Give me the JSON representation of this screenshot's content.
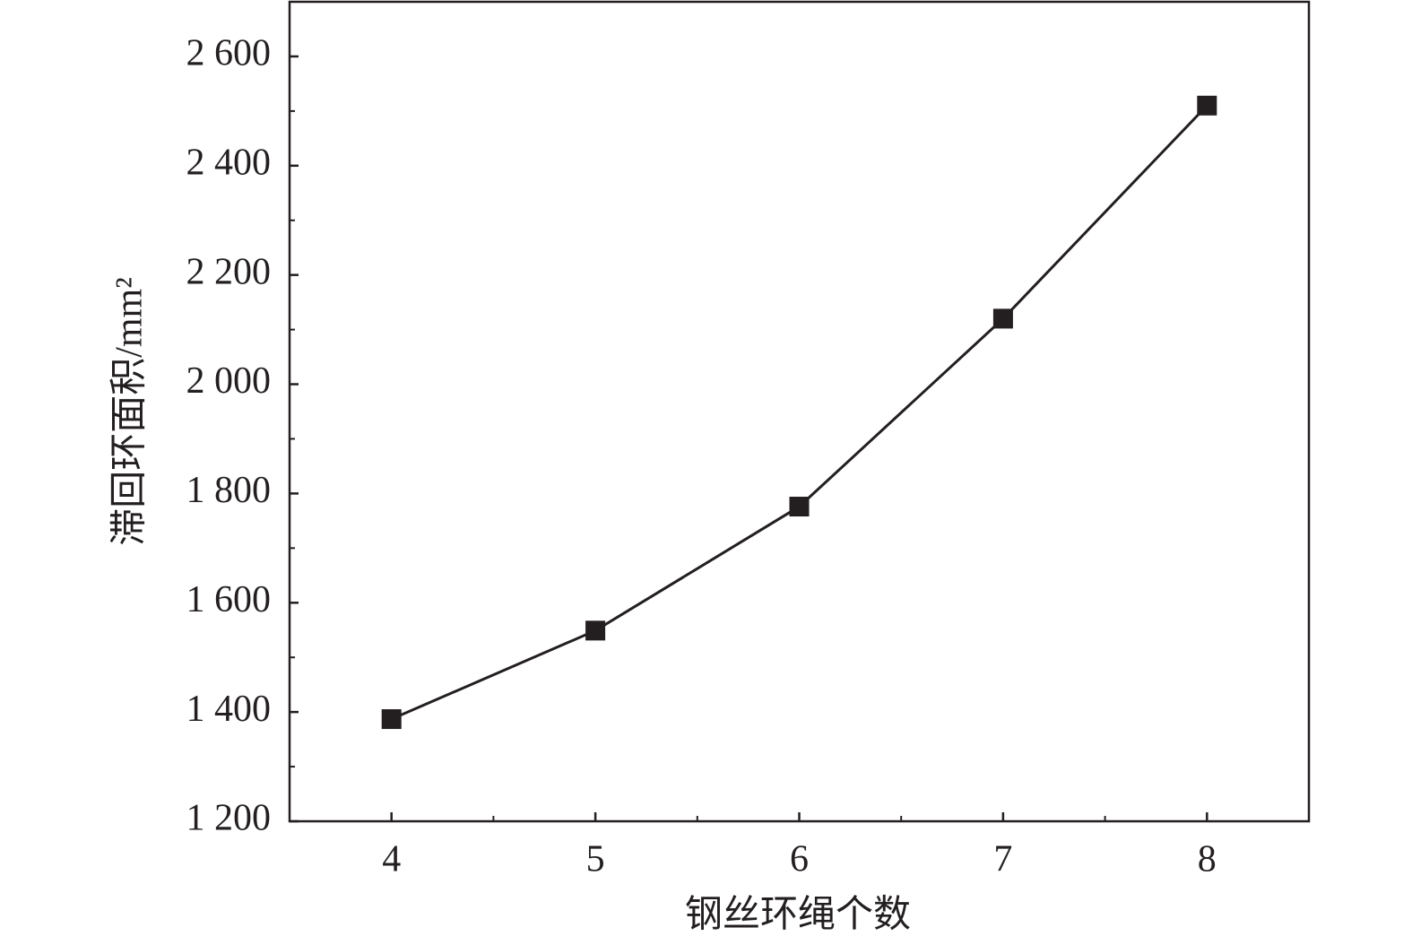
{
  "chart_data": {
    "type": "line",
    "x_label": "钢丝环绳个数",
    "y_label": "滞回环面积/mm²",
    "x": [
      4,
      5,
      6,
      7,
      8
    ],
    "series": [
      {
        "name": "滞回环面积",
        "color": "#231f20",
        "values": [
          1387,
          1549,
          1776,
          2120,
          2510
        ]
      }
    ],
    "xlim": [
      3.5,
      8.5
    ],
    "xticks": [
      4,
      5,
      6,
      7,
      8
    ],
    "ylim": [
      1200,
      2700
    ],
    "yticks": [
      {
        "value": 1200,
        "label": "1 200"
      },
      {
        "value": 1400,
        "label": "1 400"
      },
      {
        "value": 1600,
        "label": "1 600"
      },
      {
        "value": 1800,
        "label": "1 800"
      },
      {
        "value": 2000,
        "label": "2 000"
      },
      {
        "value": 2200,
        "label": "2 200"
      },
      {
        "value": 2400,
        "label": "2 400"
      },
      {
        "value": 2600,
        "label": "2 600"
      }
    ],
    "grid": false
  }
}
